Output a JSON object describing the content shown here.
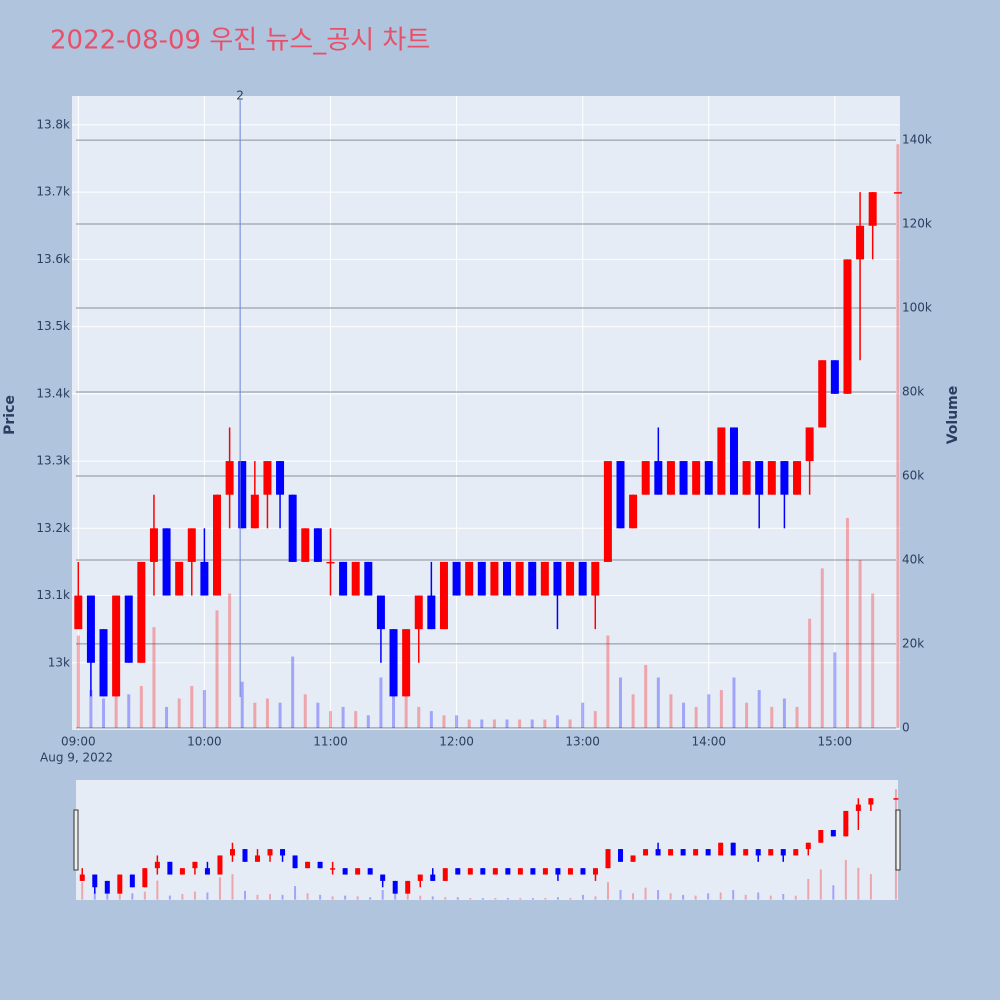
{
  "chart_data": {
    "type": "candlestick",
    "title": "2022-08-09 우진 뉴스_공시 차트",
    "y_title": "Price",
    "y2_title": "Volume",
    "x_date_label": "Aug 9, 2022",
    "increasing_color": "#ff0000",
    "decreasing_color": "#0000ff",
    "x": [
      "09:00",
      "09:06",
      "09:12",
      "09:18",
      "09:24",
      "09:30",
      "09:36",
      "09:42",
      "09:48",
      "09:54",
      "10:00",
      "10:06",
      "10:12",
      "10:18",
      "10:24",
      "10:30",
      "10:36",
      "10:42",
      "10:48",
      "10:54",
      "11:00",
      "11:06",
      "11:12",
      "11:18",
      "11:24",
      "11:30",
      "11:36",
      "11:42",
      "11:48",
      "11:54",
      "12:00",
      "12:06",
      "12:12",
      "12:18",
      "12:24",
      "12:30",
      "12:36",
      "12:42",
      "12:48",
      "12:54",
      "13:00",
      "13:06",
      "13:12",
      "13:18",
      "13:24",
      "13:30",
      "13:36",
      "13:42",
      "13:48",
      "13:54",
      "14:00",
      "14:06",
      "14:12",
      "14:18",
      "14:24",
      "14:30",
      "14:36",
      "14:42",
      "14:48",
      "14:54",
      "15:00",
      "15:06",
      "15:12",
      "15:18",
      "15:30"
    ],
    "open": [
      13050,
      13100,
      13050,
      12950,
      13100,
      13000,
      13150,
      13200,
      13100,
      13150,
      13150,
      13100,
      13250,
      13300,
      13200,
      13250,
      13300,
      13250,
      13150,
      13200,
      13150,
      13150,
      13100,
      13150,
      13100,
      13050,
      12950,
      13050,
      13100,
      13050,
      13150,
      13100,
      13150,
      13100,
      13150,
      13100,
      13150,
      13100,
      13150,
      13100,
      13150,
      13100,
      13150,
      13300,
      13200,
      13250,
      13300,
      13250,
      13300,
      13250,
      13300,
      13250,
      13350,
      13250,
      13300,
      13250,
      13300,
      13250,
      13300,
      13350,
      13450,
      13400,
      13600,
      13650,
      13700
    ],
    "high": [
      13150,
      13100,
      13050,
      13100,
      13100,
      13150,
      13250,
      13200,
      13150,
      13200,
      13200,
      13250,
      13350,
      13300,
      13300,
      13300,
      13300,
      13250,
      13200,
      13200,
      13200,
      13150,
      13150,
      13150,
      13100,
      13050,
      13050,
      13100,
      13150,
      13150,
      13150,
      13150,
      13150,
      13150,
      13150,
      13150,
      13150,
      13150,
      13150,
      13150,
      13150,
      13150,
      13300,
      13300,
      13250,
      13300,
      13350,
      13300,
      13300,
      13300,
      13300,
      13350,
      13350,
      13300,
      13300,
      13300,
      13300,
      13300,
      13350,
      13450,
      13450,
      13600,
      13700,
      13700,
      13700
    ],
    "low": [
      13050,
      12950,
      12950,
      12950,
      13000,
      13000,
      13100,
      13100,
      13100,
      13100,
      13100,
      13100,
      13200,
      13200,
      13200,
      13200,
      13200,
      13150,
      13150,
      13150,
      13100,
      13100,
      13100,
      13100,
      13000,
      12950,
      12950,
      13000,
      13050,
      13050,
      13100,
      13100,
      13100,
      13100,
      13100,
      13100,
      13100,
      13100,
      13050,
      13100,
      13100,
      13050,
      13150,
      13200,
      13200,
      13250,
      13250,
      13250,
      13250,
      13250,
      13250,
      13250,
      13250,
      13250,
      13200,
      13250,
      13200,
      13250,
      13250,
      13350,
      13400,
      13400,
      13450,
      13600,
      13700
    ],
    "close": [
      13100,
      13000,
      12950,
      13100,
      13000,
      13150,
      13200,
      13100,
      13150,
      13200,
      13100,
      13250,
      13300,
      13200,
      13250,
      13300,
      13250,
      13150,
      13200,
      13150,
      13150,
      13100,
      13150,
      13100,
      13050,
      12950,
      13050,
      13100,
      13050,
      13150,
      13100,
      13150,
      13100,
      13150,
      13100,
      13150,
      13100,
      13150,
      13100,
      13150,
      13100,
      13150,
      13300,
      13200,
      13250,
      13300,
      13250,
      13300,
      13250,
      13300,
      13250,
      13350,
      13250,
      13300,
      13250,
      13300,
      13250,
      13300,
      13350,
      13450,
      13400,
      13600,
      13650,
      13700,
      13700
    ],
    "volume": [
      22000,
      9000,
      7000,
      12000,
      8000,
      10000,
      24000,
      5000,
      7000,
      10000,
      9000,
      28000,
      32000,
      11000,
      6000,
      7000,
      6000,
      17000,
      8000,
      6000,
      4000,
      5000,
      4000,
      3000,
      12000,
      16000,
      8000,
      5000,
      4000,
      3000,
      3000,
      2000,
      2000,
      2000,
      2000,
      2000,
      2000,
      2000,
      3000,
      2000,
      6000,
      4000,
      22000,
      12000,
      8000,
      15000,
      12000,
      8000,
      6000,
      5000,
      8000,
      9000,
      12000,
      6000,
      9000,
      5000,
      7000,
      5000,
      26000,
      38000,
      18000,
      50000,
      40000,
      32000,
      139000
    ],
    "xlim": [
      "08:57",
      "15:31"
    ],
    "xticks": [
      "09:00",
      "10:00",
      "11:00",
      "12:00",
      "13:00",
      "14:00",
      "15:00"
    ],
    "ylim": [
      12900,
      13843
    ],
    "yticks": [
      {
        "value": 13000,
        "label": "13k"
      },
      {
        "value": 13100,
        "label": "13.1k"
      },
      {
        "value": 13200,
        "label": "13.2k"
      },
      {
        "value": 13300,
        "label": "13.3k"
      },
      {
        "value": 13400,
        "label": "13.4k"
      },
      {
        "value": 13500,
        "label": "13.5k"
      },
      {
        "value": 13600,
        "label": "13.6k"
      },
      {
        "value": 13700,
        "label": "13.7k"
      },
      {
        "value": 13800,
        "label": "13.8k"
      }
    ],
    "y2lim": [
      -500,
      150500
    ],
    "y2ticks": [
      0,
      {
        "value": 20000,
        "label": "20k"
      },
      {
        "value": 40000,
        "label": "40k"
      },
      {
        "value": 60000,
        "label": "60k"
      },
      {
        "value": 80000,
        "label": "80k"
      },
      {
        "value": 100000,
        "label": "100k"
      },
      {
        "value": 120000,
        "label": "120k"
      },
      {
        "value": 140000,
        "label": "140k"
      }
    ],
    "annotations": [
      {
        "x": "10:17",
        "text": "2"
      }
    ],
    "grid": true,
    "rangeslider": true
  }
}
